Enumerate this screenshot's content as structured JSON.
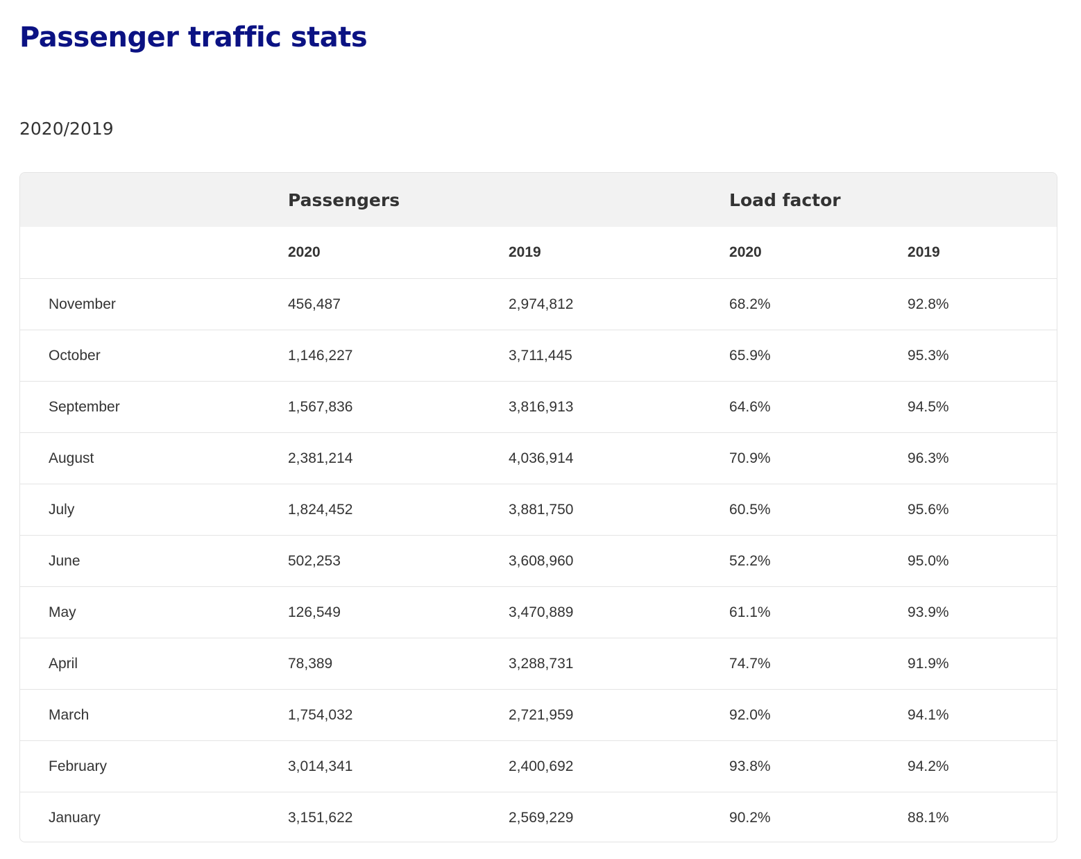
{
  "page": {
    "title": "Passenger traffic stats",
    "subtitle": "2020/2019"
  },
  "table": {
    "group_headers": {
      "passengers": "Passengers",
      "load_factor": "Load factor"
    },
    "year_headers": {
      "passengers_2020": "2020",
      "passengers_2019": "2019",
      "load_factor_2020": "2020",
      "load_factor_2019": "2019"
    },
    "rows": [
      {
        "month": "November",
        "passengers_2020": "456,487",
        "passengers_2019": "2,974,812",
        "load_factor_2020": "68.2%",
        "load_factor_2019": "92.8%"
      },
      {
        "month": "October",
        "passengers_2020": "1,146,227",
        "passengers_2019": "3,711,445",
        "load_factor_2020": "65.9%",
        "load_factor_2019": "95.3%"
      },
      {
        "month": "September",
        "passengers_2020": "1,567,836",
        "passengers_2019": "3,816,913",
        "load_factor_2020": "64.6%",
        "load_factor_2019": "94.5%"
      },
      {
        "month": "August",
        "passengers_2020": "2,381,214",
        "passengers_2019": "4,036,914",
        "load_factor_2020": "70.9%",
        "load_factor_2019": "96.3%"
      },
      {
        "month": "July",
        "passengers_2020": "1,824,452",
        "passengers_2019": "3,881,750",
        "load_factor_2020": "60.5%",
        "load_factor_2019": "95.6%"
      },
      {
        "month": "June",
        "passengers_2020": "502,253",
        "passengers_2019": "3,608,960",
        "load_factor_2020": "52.2%",
        "load_factor_2019": "95.0%"
      },
      {
        "month": "May",
        "passengers_2020": "126,549",
        "passengers_2019": "3,470,889",
        "load_factor_2020": "61.1%",
        "load_factor_2019": "93.9%"
      },
      {
        "month": "April",
        "passengers_2020": "78,389",
        "passengers_2019": "3,288,731",
        "load_factor_2020": "74.7%",
        "load_factor_2019": "91.9%"
      },
      {
        "month": "March",
        "passengers_2020": "1,754,032",
        "passengers_2019": "2,721,959",
        "load_factor_2020": "92.0%",
        "load_factor_2019": "94.1%"
      },
      {
        "month": "February",
        "passengers_2020": "3,014,341",
        "passengers_2019": "2,400,692",
        "load_factor_2020": "93.8%",
        "load_factor_2019": "94.2%"
      },
      {
        "month": "January",
        "passengers_2020": "3,151,622",
        "passengers_2019": "2,569,229",
        "load_factor_2020": "90.2%",
        "load_factor_2019": "88.1%"
      }
    ]
  },
  "colors": {
    "title": "#0b1283",
    "text": "#333333",
    "header_background": "#f2f2f2",
    "border": "#e4e4e4"
  }
}
